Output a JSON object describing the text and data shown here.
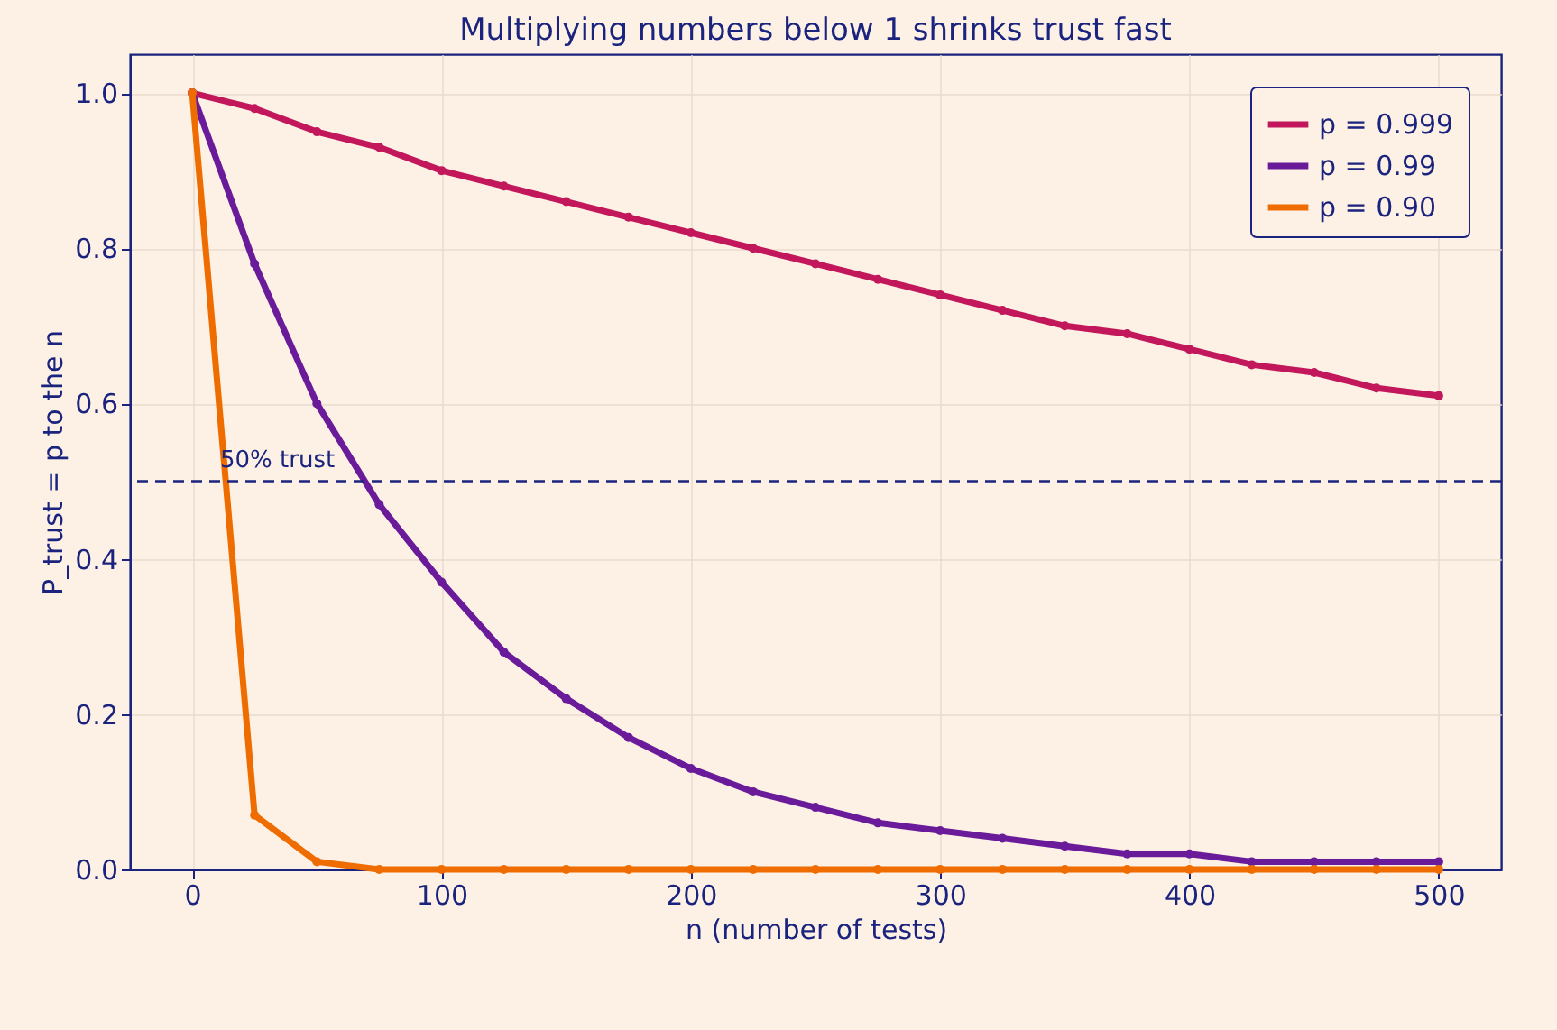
{
  "chart_data": {
    "type": "line",
    "title": "Multiplying numbers below 1 shrinks trust fast",
    "xlabel": "n  (number of tests)",
    "ylabel": "P_trust = p to the n",
    "x": [
      0,
      25,
      50,
      75,
      100,
      125,
      150,
      175,
      200,
      225,
      250,
      275,
      300,
      325,
      350,
      375,
      400,
      425,
      450,
      475,
      500
    ],
    "series": [
      {
        "name": "p = 0.999",
        "color": "#c2185b",
        "values": [
          1,
          0.98,
          0.95,
          0.93,
          0.9,
          0.88,
          0.86,
          0.84,
          0.82,
          0.8,
          0.78,
          0.76,
          0.74,
          0.72,
          0.7,
          0.69,
          0.67,
          0.65,
          0.64,
          0.62,
          0.61
        ]
      },
      {
        "name": "p = 0.99",
        "color": "#6a1b9a",
        "values": [
          1,
          0.78,
          0.6,
          0.47,
          0.37,
          0.28,
          0.22,
          0.17,
          0.13,
          0.1,
          0.08,
          0.06,
          0.05,
          0.04,
          0.03,
          0.02,
          0.02,
          0.01,
          0.01,
          0.01,
          0.01
        ]
      },
      {
        "name": "p = 0.90",
        "color": "#ef6c00",
        "values": [
          1,
          0.07,
          0.01,
          0,
          0,
          0,
          0,
          0,
          0,
          0,
          0,
          0,
          0,
          0,
          0,
          0,
          0,
          0,
          0,
          0,
          0
        ]
      }
    ],
    "xlim": [
      -25,
      525
    ],
    "xticks": [
      0,
      100,
      200,
      300,
      400,
      500
    ],
    "ylim": [
      0,
      1.05
    ],
    "yticks": [
      {
        "value": 0,
        "label": "0.0"
      },
      {
        "value": 0.2,
        "label": "0.2"
      },
      {
        "value": 0.4,
        "label": "0.4"
      },
      {
        "value": 0.6,
        "label": "0.6"
      },
      {
        "value": 0.8,
        "label": "0.8"
      },
      {
        "value": 1,
        "label": "1.0"
      }
    ],
    "ref_lines": [
      {
        "axis": "y",
        "value": 0.5,
        "label": "50% trust",
        "color": "#1a237e",
        "line_style": "dashed"
      }
    ],
    "grid": true,
    "legend": "top right",
    "marker": "circle",
    "line_style": "solid"
  }
}
